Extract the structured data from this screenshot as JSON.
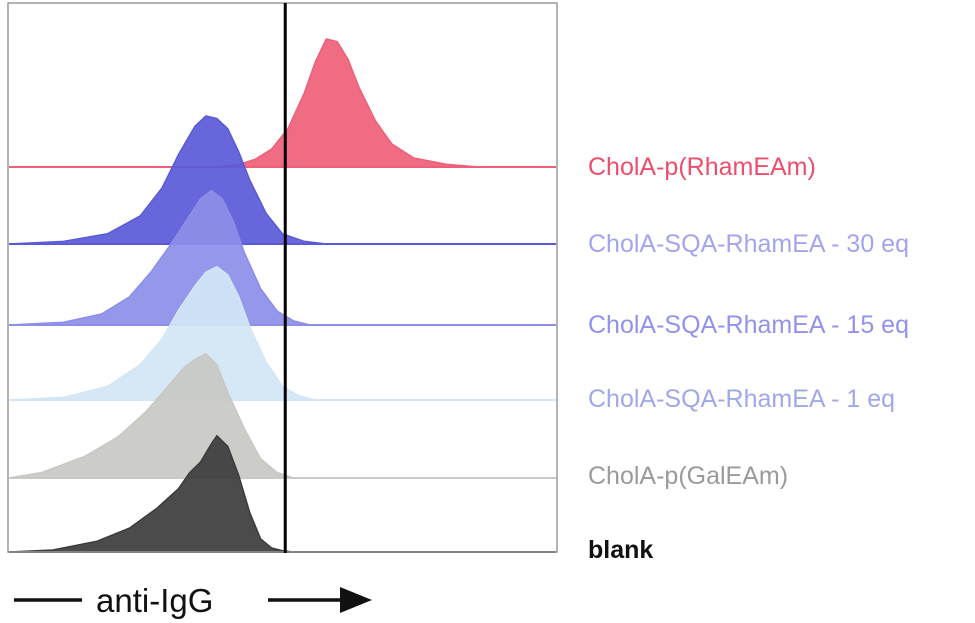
{
  "chart_data": {
    "type": "area",
    "subtype": "stacked-offset-histogram",
    "xlabel": "anti-IgG",
    "ylabel": "",
    "title": "",
    "grid": false,
    "legend": "right, aligned with each trace baseline",
    "gate_line": {
      "x": 0.505,
      "color": "#000000"
    },
    "x_range": [
      0,
      1
    ],
    "series": [
      {
        "name": "blank",
        "color": "#3c3c3c",
        "label_color": "#111111",
        "bold": true,
        "x": [
          0.0,
          0.08,
          0.16,
          0.22,
          0.27,
          0.31,
          0.33,
          0.35,
          0.37,
          0.38,
          0.4,
          0.42,
          0.44,
          0.46,
          0.48,
          0.5,
          0.52,
          1.0
        ],
        "y": [
          0.0,
          0.015,
          0.08,
          0.18,
          0.33,
          0.48,
          0.6,
          0.68,
          0.82,
          0.88,
          0.8,
          0.58,
          0.3,
          0.1,
          0.03,
          0.01,
          0.0,
          0.0
        ]
      },
      {
        "name": "CholA-p(GalEAm)",
        "color": "#c8c8c4",
        "label_color": "#9a9a9a",
        "bold": false,
        "x": [
          0.0,
          0.06,
          0.14,
          0.2,
          0.25,
          0.29,
          0.32,
          0.34,
          0.36,
          0.38,
          0.4,
          0.43,
          0.46,
          0.49,
          0.52,
          1.0
        ],
        "y": [
          0.0,
          0.04,
          0.16,
          0.3,
          0.48,
          0.66,
          0.8,
          0.86,
          0.9,
          0.82,
          0.62,
          0.36,
          0.14,
          0.04,
          0.0,
          0.0
        ]
      },
      {
        "name": "CholA-SQA-RhamEA - 1 eq",
        "color": "#d2e6f5",
        "label_color": "#a0a8e8",
        "bold": false,
        "x": [
          0.0,
          0.1,
          0.18,
          0.24,
          0.28,
          0.31,
          0.34,
          0.36,
          0.38,
          0.4,
          0.42,
          0.44,
          0.47,
          0.5,
          0.53,
          0.56,
          1.0
        ],
        "y": [
          0.0,
          0.02,
          0.1,
          0.26,
          0.45,
          0.66,
          0.84,
          0.94,
          0.98,
          0.92,
          0.76,
          0.54,
          0.28,
          0.1,
          0.03,
          0.0,
          0.0
        ]
      },
      {
        "name": "CholA-SQA-RhamEA - 15 eq",
        "color": "#8c8ee8",
        "label_color": "#9292ee",
        "bold": false,
        "x": [
          0.0,
          0.1,
          0.17,
          0.22,
          0.26,
          0.3,
          0.33,
          0.35,
          0.37,
          0.39,
          0.41,
          0.43,
          0.46,
          0.49,
          0.52,
          0.55,
          1.0
        ],
        "y": [
          0.0,
          0.02,
          0.08,
          0.2,
          0.38,
          0.6,
          0.78,
          0.9,
          0.96,
          0.9,
          0.74,
          0.52,
          0.26,
          0.1,
          0.03,
          0.0,
          0.0
        ]
      },
      {
        "name": "CholA-SQA-RhamEA - 30 eq",
        "color": "#5a5ad8",
        "label_color": "#a4a4ee",
        "bold": false,
        "x": [
          0.0,
          0.1,
          0.18,
          0.24,
          0.28,
          0.31,
          0.34,
          0.36,
          0.38,
          0.4,
          0.42,
          0.44,
          0.47,
          0.5,
          0.54,
          0.58,
          1.0
        ],
        "y": [
          0.0,
          0.02,
          0.08,
          0.22,
          0.44,
          0.7,
          0.92,
          1.0,
          0.98,
          0.9,
          0.72,
          0.5,
          0.24,
          0.08,
          0.02,
          0.0,
          0.0
        ]
      },
      {
        "name": "CholA-p(RhamEAm)",
        "color": "#ee5f78",
        "label_color": "#ee4d6c",
        "bold": false,
        "x": [
          0.0,
          0.38,
          0.42,
          0.45,
          0.48,
          0.51,
          0.54,
          0.56,
          0.58,
          0.6,
          0.62,
          0.64,
          0.67,
          0.7,
          0.74,
          0.8,
          0.86,
          1.0
        ],
        "y": [
          0.0,
          0.0,
          0.02,
          0.06,
          0.14,
          0.3,
          0.58,
          0.82,
          1.0,
          0.98,
          0.84,
          0.62,
          0.36,
          0.18,
          0.07,
          0.02,
          0.0,
          0.0
        ]
      }
    ]
  }
}
